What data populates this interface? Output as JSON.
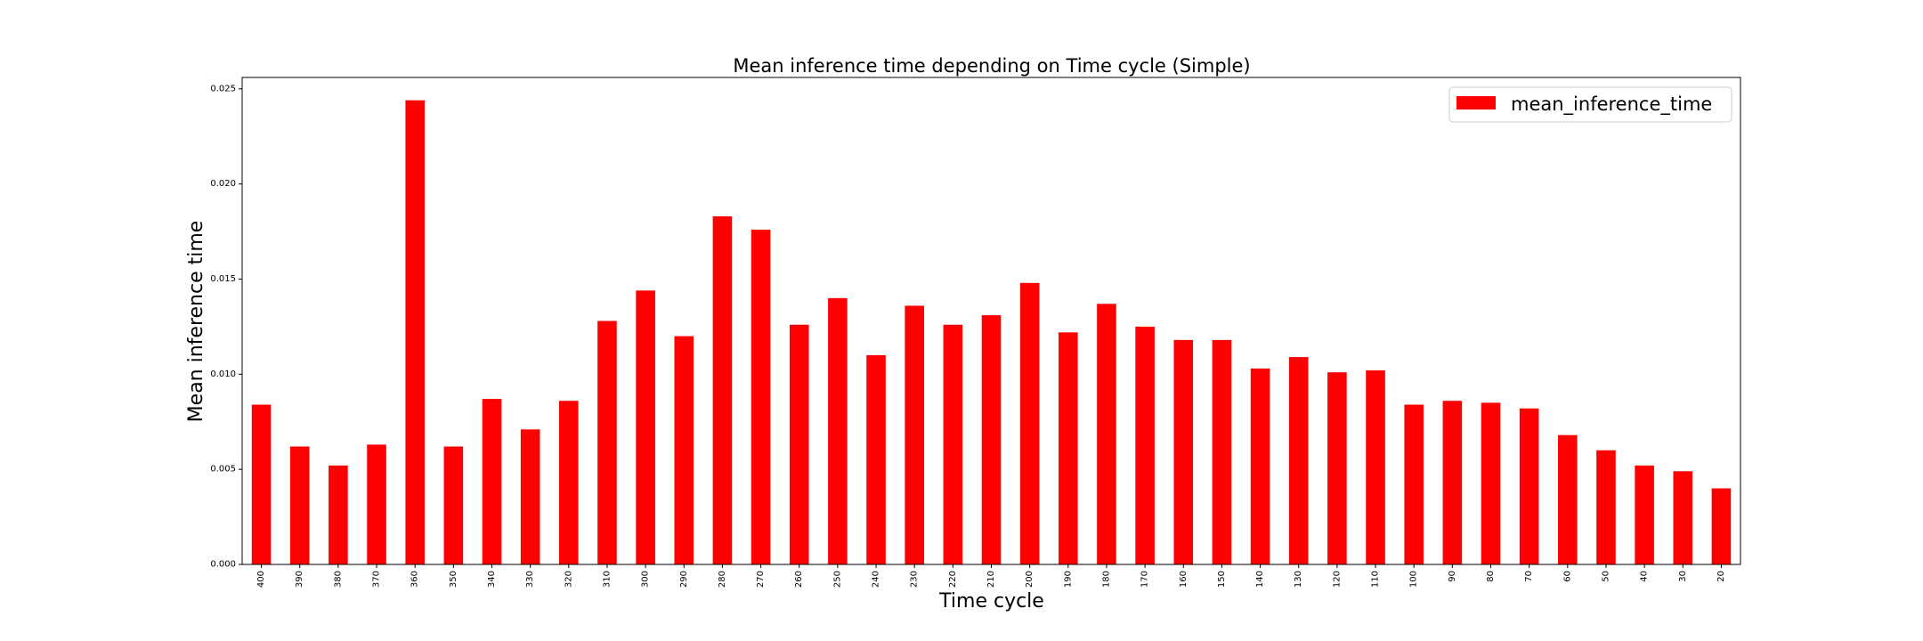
{
  "chart_data": {
    "type": "bar",
    "title": "Mean inference time depending on Time cycle (Simple)",
    "xlabel": "Time cycle",
    "ylabel": "Mean inference time",
    "categories": [
      "400",
      "390",
      "380",
      "370",
      "360",
      "350",
      "340",
      "330",
      "320",
      "310",
      "300",
      "290",
      "280",
      "270",
      "260",
      "250",
      "240",
      "230",
      "220",
      "210",
      "200",
      "190",
      "180",
      "170",
      "160",
      "150",
      "140",
      "130",
      "120",
      "110",
      "100",
      "90",
      "80",
      "70",
      "60",
      "50",
      "40",
      "30",
      "20"
    ],
    "series": [
      {
        "name": "mean_inference_time",
        "color": "#ff0000",
        "values": [
          0.0084,
          0.0062,
          0.0052,
          0.0063,
          0.0244,
          0.0062,
          0.0087,
          0.0071,
          0.0086,
          0.0128,
          0.0144,
          0.012,
          0.0183,
          0.0176,
          0.0126,
          0.014,
          0.011,
          0.0136,
          0.0126,
          0.0131,
          0.0148,
          0.0122,
          0.0137,
          0.0125,
          0.0118,
          0.0118,
          0.0103,
          0.0109,
          0.0101,
          0.0102,
          0.0084,
          0.0086,
          0.0085,
          0.0082,
          0.0068,
          0.006,
          0.0052,
          0.0049,
          0.004
        ]
      }
    ],
    "ylim": [
      0,
      0.0256
    ],
    "yticks": [
      "0.000",
      "0.005",
      "0.010",
      "0.015",
      "0.020",
      "0.025"
    ],
    "ytick_values": [
      0,
      0.005,
      0.01,
      0.015,
      0.02,
      0.025
    ],
    "grid": false,
    "legend": "top-right"
  }
}
